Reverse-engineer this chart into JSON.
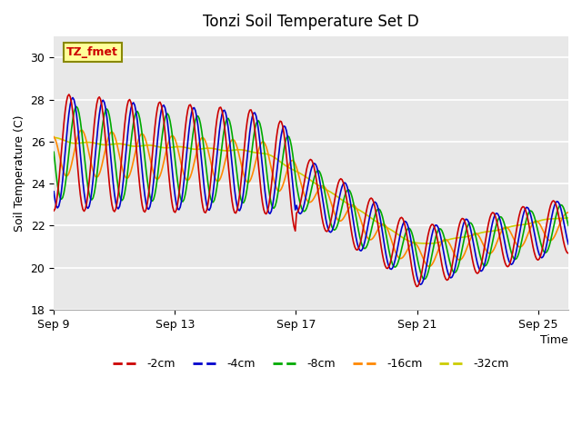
{
  "title": "Tonzi Soil Temperature Set D",
  "xlabel": "Time",
  "ylabel": "Soil Temperature (C)",
  "ylim": [
    18,
    31
  ],
  "yticks": [
    18,
    20,
    22,
    24,
    26,
    28,
    30
  ],
  "xtick_positions": [
    0,
    4,
    8,
    12,
    16
  ],
  "xtick_labels": [
    "Sep 9",
    "Sep 13",
    "Sep 17",
    "Sep 21",
    "Sep 25"
  ],
  "series_colors": [
    "#cc0000",
    "#0000cc",
    "#00aa00",
    "#ff8800",
    "#cccc00"
  ],
  "series_labels": [
    "-2cm",
    "-4cm",
    "-8cm",
    "-16cm",
    "-32cm"
  ],
  "annotation_text": "TZ_fmet",
  "annotation_color": "#cc0000",
  "annotation_bg": "#ffff99",
  "annotation_border": "#888800",
  "background_color": "#e8e8e8"
}
